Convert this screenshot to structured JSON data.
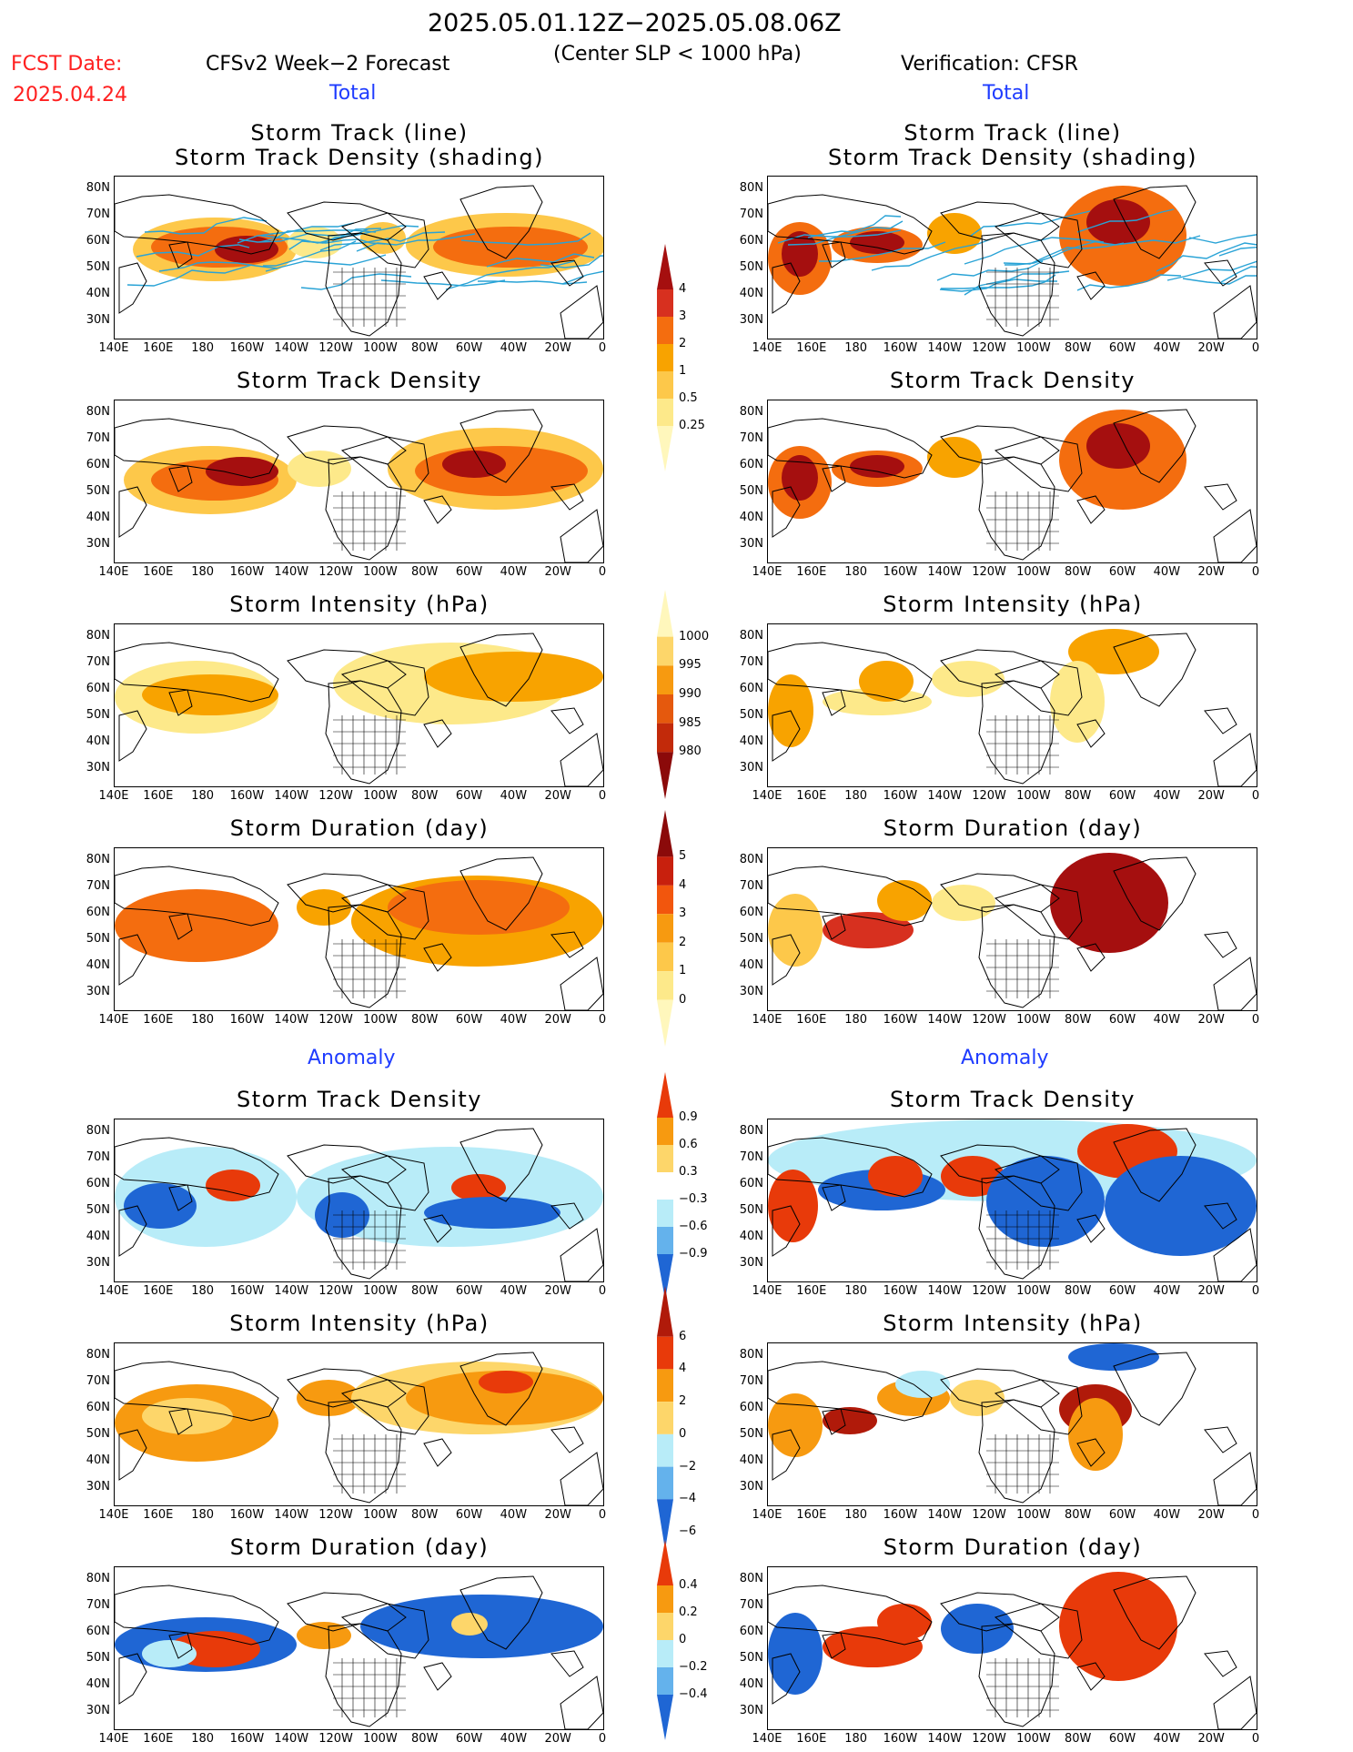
{
  "header": {
    "period": "2025.05.01.12Z−2025.05.08.06Z",
    "criterion": "(Center SLP < 1000 hPa)",
    "fcst_label": "FCST Date:",
    "fcst_date": "2025.04.24",
    "left_title": "CFSv2 Week−2 Forecast",
    "right_title": "Verification: CFSR",
    "total_label": "Total",
    "anomaly_label": "Anomaly"
  },
  "panel_titles": {
    "track_line": "Storm Track (line)",
    "track_density_shading": "Storm Track Density (shading)",
    "track_density": "Storm Track Density",
    "intensity": "Storm Intensity (hPa)",
    "duration": "Storm Duration (day)"
  },
  "axes": {
    "lon_ticks": [
      "140E",
      "160E",
      "180",
      "160W",
      "140W",
      "120W",
      "100W",
      "80W",
      "60W",
      "40W",
      "20W",
      "0"
    ],
    "lat_ticks": [
      "80N",
      "70N",
      "60N",
      "50N",
      "40N",
      "30N"
    ]
  },
  "colorbars": {
    "density_total": {
      "labels": [
        "4",
        "3",
        "2",
        "1",
        "0.5",
        "0.25"
      ],
      "colors": [
        "#a50f0f",
        "#d7301f",
        "#f46d0f",
        "#f8a300",
        "#fdc84a",
        "#fde98a",
        "#fff7bc"
      ]
    },
    "intensity_total": {
      "labels": [
        "1000",
        "995",
        "990",
        "985",
        "980"
      ],
      "colors": [
        "#fff7bc",
        "#fdd66a",
        "#f79a10",
        "#e5590d",
        "#c22a0a",
        "#8b0a0a"
      ]
    },
    "duration_total": {
      "labels": [
        "5",
        "4",
        "3",
        "2",
        "1",
        "0"
      ],
      "colors": [
        "#8b0a0a",
        "#c8200d",
        "#f2560d",
        "#f79a10",
        "#fdc84a",
        "#fde98a",
        "#fff7bc"
      ]
    },
    "density_anom": {
      "labels": [
        "0.9",
        "0.6",
        "0.3",
        "−0.3",
        "−0.6",
        "−0.9"
      ],
      "colors": [
        "#e83a0a",
        "#f79a10",
        "#fdd66a",
        "#ffffff",
        "#b8ecf8",
        "#64b2ec",
        "#1f66d4"
      ]
    },
    "intensity_anom": {
      "labels": [
        "6",
        "4",
        "2",
        "0",
        "−2",
        "−4",
        "−6"
      ],
      "colors": [
        "#b01a0a",
        "#e83a0a",
        "#f79a10",
        "#fdd66a",
        "#b8ecf8",
        "#64b2ec",
        "#1f66d4"
      ]
    },
    "duration_anom": {
      "labels": [
        "0.4",
        "0.2",
        "0",
        "−0.2",
        "−0.4"
      ],
      "colors": [
        "#e83a0a",
        "#f79a10",
        "#fdd66a",
        "#b8ecf8",
        "#64b2ec",
        "#1f66d4"
      ]
    }
  }
}
